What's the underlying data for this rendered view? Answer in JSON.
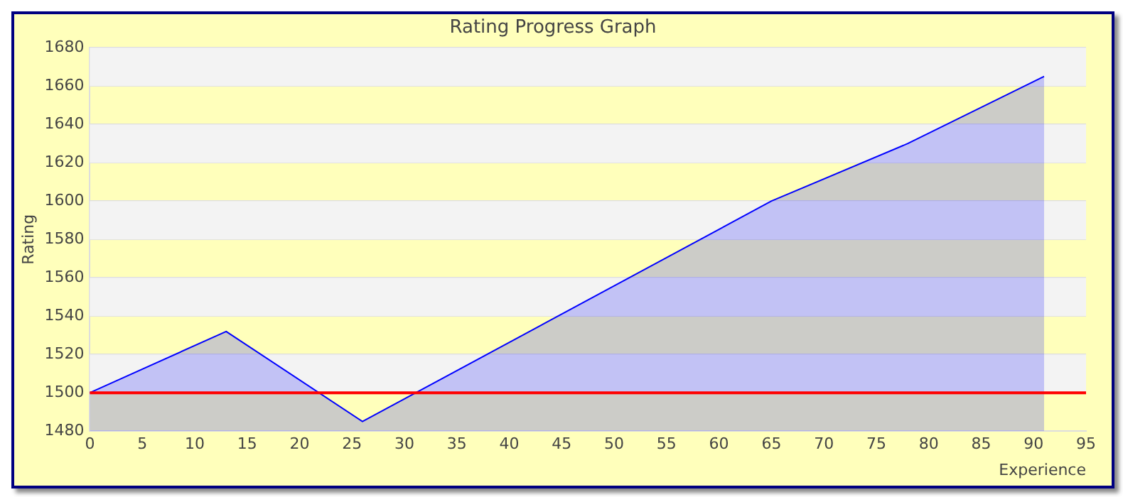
{
  "chart_data": {
    "type": "area",
    "title": "Rating Progress Graph",
    "xlabel": "Experience",
    "ylabel": "Rating",
    "x": [
      0,
      13,
      26,
      65,
      78,
      91
    ],
    "series": [
      {
        "color": "#0000ff",
        "values": [
          1500,
          1532,
          1485,
          1600,
          1630,
          1665
        ]
      }
    ],
    "xlim": [
      0,
      95
    ],
    "xticks": [
      0,
      5,
      10,
      15,
      20,
      25,
      30,
      35,
      40,
      45,
      50,
      55,
      60,
      65,
      70,
      75,
      80,
      85,
      90,
      95
    ],
    "ylim": [
      1480,
      1680
    ],
    "yticks": [
      1480,
      1500,
      1520,
      1540,
      1560,
      1580,
      1600,
      1620,
      1640,
      1660,
      1680
    ],
    "ref_lines": [
      {
        "axis": "y",
        "value": 1500,
        "color": "#ff0000"
      }
    ],
    "grid": "y",
    "legend": false,
    "marker": "none"
  }
}
